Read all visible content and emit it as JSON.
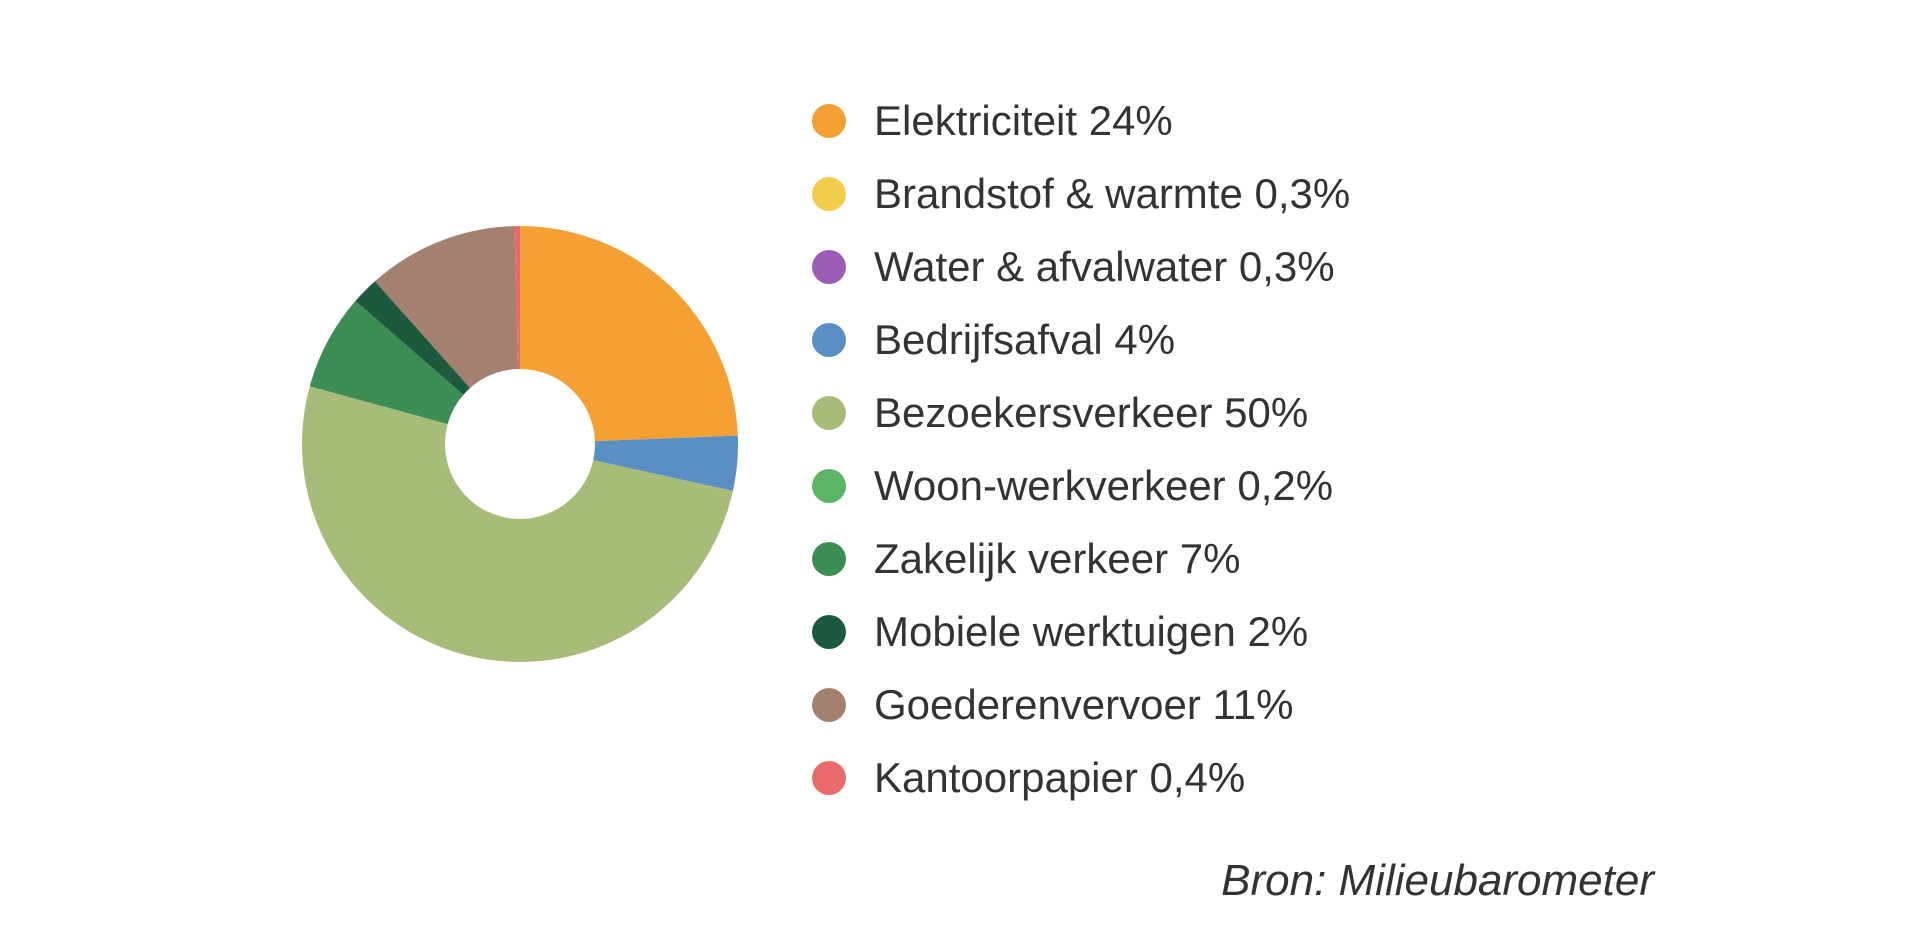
{
  "chart_data": {
    "type": "pie",
    "variant": "donut",
    "legend_position": "right",
    "slices": [
      {
        "label": "Elektriciteit 24%",
        "value": 24,
        "color": "#F5A033"
      },
      {
        "label": "Bedrijfsafval 4%",
        "value": 4,
        "color": "#5B8FC3"
      },
      {
        "label": "Bezoekersverkeer 50%",
        "value": 50,
        "color": "#A8BC7A"
      },
      {
        "label": "Zakelijk verkeer 7%",
        "value": 7,
        "color": "#3C8E55"
      },
      {
        "label": "Mobiele werktuigen 2%",
        "value": 2,
        "color": "#1C5A3E"
      },
      {
        "label": "Goederenvervoer 11%",
        "value": 11,
        "color": "#A48070"
      },
      {
        "label": "Kantoorpapier 0,4%",
        "value": 0.4,
        "color": "#E96A6A"
      }
    ],
    "legend": [
      {
        "label": "Elektriciteit 24%",
        "color": "#F5A033"
      },
      {
        "label": "Brandstof & warmte 0,3%",
        "color": "#F2CC4C"
      },
      {
        "label": "Water & afvalwater 0,3%",
        "color": "#9B5DB5"
      },
      {
        "label": "Bedrijfsafval 4%",
        "color": "#5B8FC3"
      },
      {
        "label": "Bezoekersverkeer 50%",
        "color": "#A8BC7A"
      },
      {
        "label": "Woon-werkverkeer 0,2%",
        "color": "#5CB566"
      },
      {
        "label": "Zakelijk verkeer 7%",
        "color": "#3C8E55"
      },
      {
        "label": "Mobiele werktuigen 2%",
        "color": "#1C5A3E"
      },
      {
        "label": "Goederenvervoer 11%",
        "color": "#A48070"
      },
      {
        "label": "Kantoorpapier 0,4%",
        "color": "#E96A6A"
      }
    ]
  },
  "source": "Bron: Milieubarometer"
}
